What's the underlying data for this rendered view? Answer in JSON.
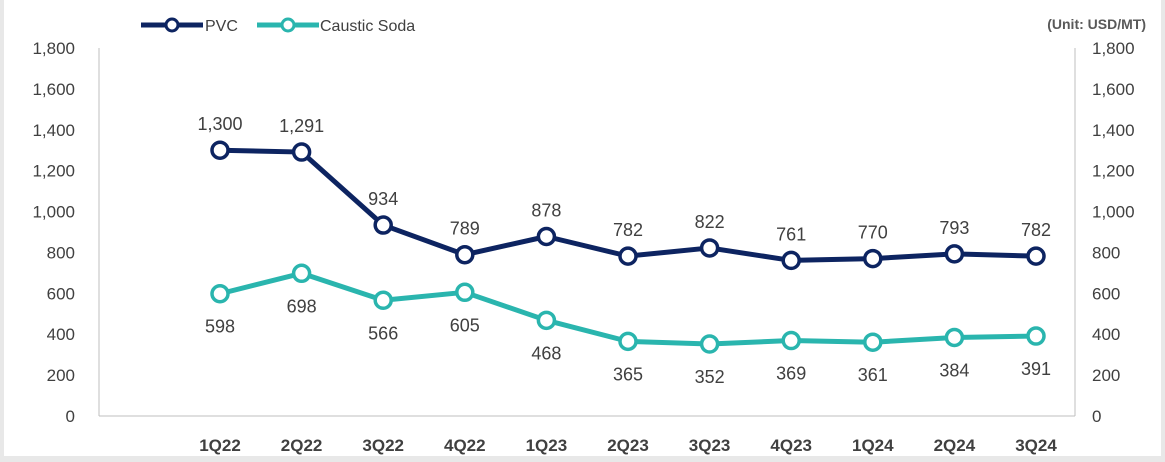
{
  "chart_data": {
    "type": "line",
    "categories": [
      "1Q22",
      "2Q22",
      "3Q22",
      "4Q22",
      "1Q23",
      "2Q23",
      "3Q23",
      "4Q23",
      "1Q24",
      "2Q24",
      "3Q24"
    ],
    "series": [
      {
        "name": "PVC",
        "color": "#0d2461",
        "values": [
          1300,
          1291,
          934,
          789,
          878,
          782,
          822,
          761,
          770,
          793,
          782
        ],
        "labels": [
          "1,300",
          "1,291",
          "934",
          "789",
          "878",
          "782",
          "822",
          "761",
          "770",
          "793",
          "782"
        ],
        "label_position": "above"
      },
      {
        "name": "Caustic Soda",
        "color": "#2ab5ae",
        "values": [
          598,
          698,
          566,
          605,
          468,
          365,
          352,
          369,
          361,
          384,
          391
        ],
        "labels": [
          "598",
          "698",
          "566",
          "605",
          "468",
          "365",
          "352",
          "369",
          "361",
          "384",
          "391"
        ],
        "label_position": "below"
      }
    ],
    "ylim": [
      0,
      1800
    ],
    "yticks": [
      0,
      200,
      400,
      600,
      800,
      1000,
      1200,
      1400,
      1600,
      1800
    ],
    "ytick_labels": [
      "0",
      "200",
      "400",
      "600",
      "800",
      "1,000",
      "1,200",
      "1,400",
      "1,600",
      "1,800"
    ],
    "secondary_y_axis": true,
    "unit_note": "(Unit: USD/MT)",
    "legend_position": "top-left",
    "grid": false
  }
}
